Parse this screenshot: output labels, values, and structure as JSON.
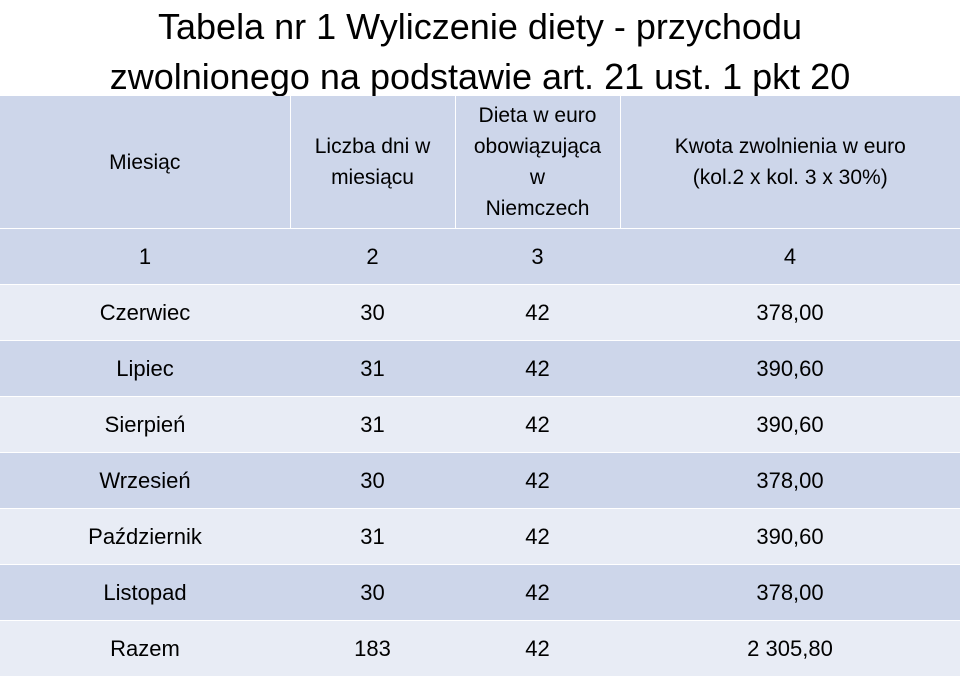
{
  "title": {
    "line1": "Tabela nr 1 Wyliczenie diety - przychodu",
    "line2": "zwolnionego na podstawie art. 21 ust. 1 pkt 20"
  },
  "table": {
    "headers": [
      "Miesiąc",
      "Liczba dni w miesiącu",
      "Dieta w euro obowiązująca w Niemczech",
      "Kwota zwolnienia w euro (kol.2 x kol. 3 x 30%)"
    ],
    "column_numbers": [
      "1",
      "2",
      "3",
      "4"
    ],
    "rows": [
      [
        "Czerwiec",
        "30",
        "42",
        "378,00"
      ],
      [
        "Lipiec",
        "31",
        "42",
        "390,60"
      ],
      [
        "Sierpień",
        "31",
        "42",
        "390,60"
      ],
      [
        "Wrzesień",
        "30",
        "42",
        "378,00"
      ],
      [
        "Październik",
        "31",
        "42",
        "390,60"
      ],
      [
        "Listopad",
        "30",
        "42",
        "378,00"
      ],
      [
        "Razem",
        "183",
        "42",
        "2 305,80"
      ]
    ]
  },
  "colors": {
    "header_bg": "#cdd6ea",
    "row_dark": "#cdd6ea",
    "row_light": "#e8ecf5"
  }
}
